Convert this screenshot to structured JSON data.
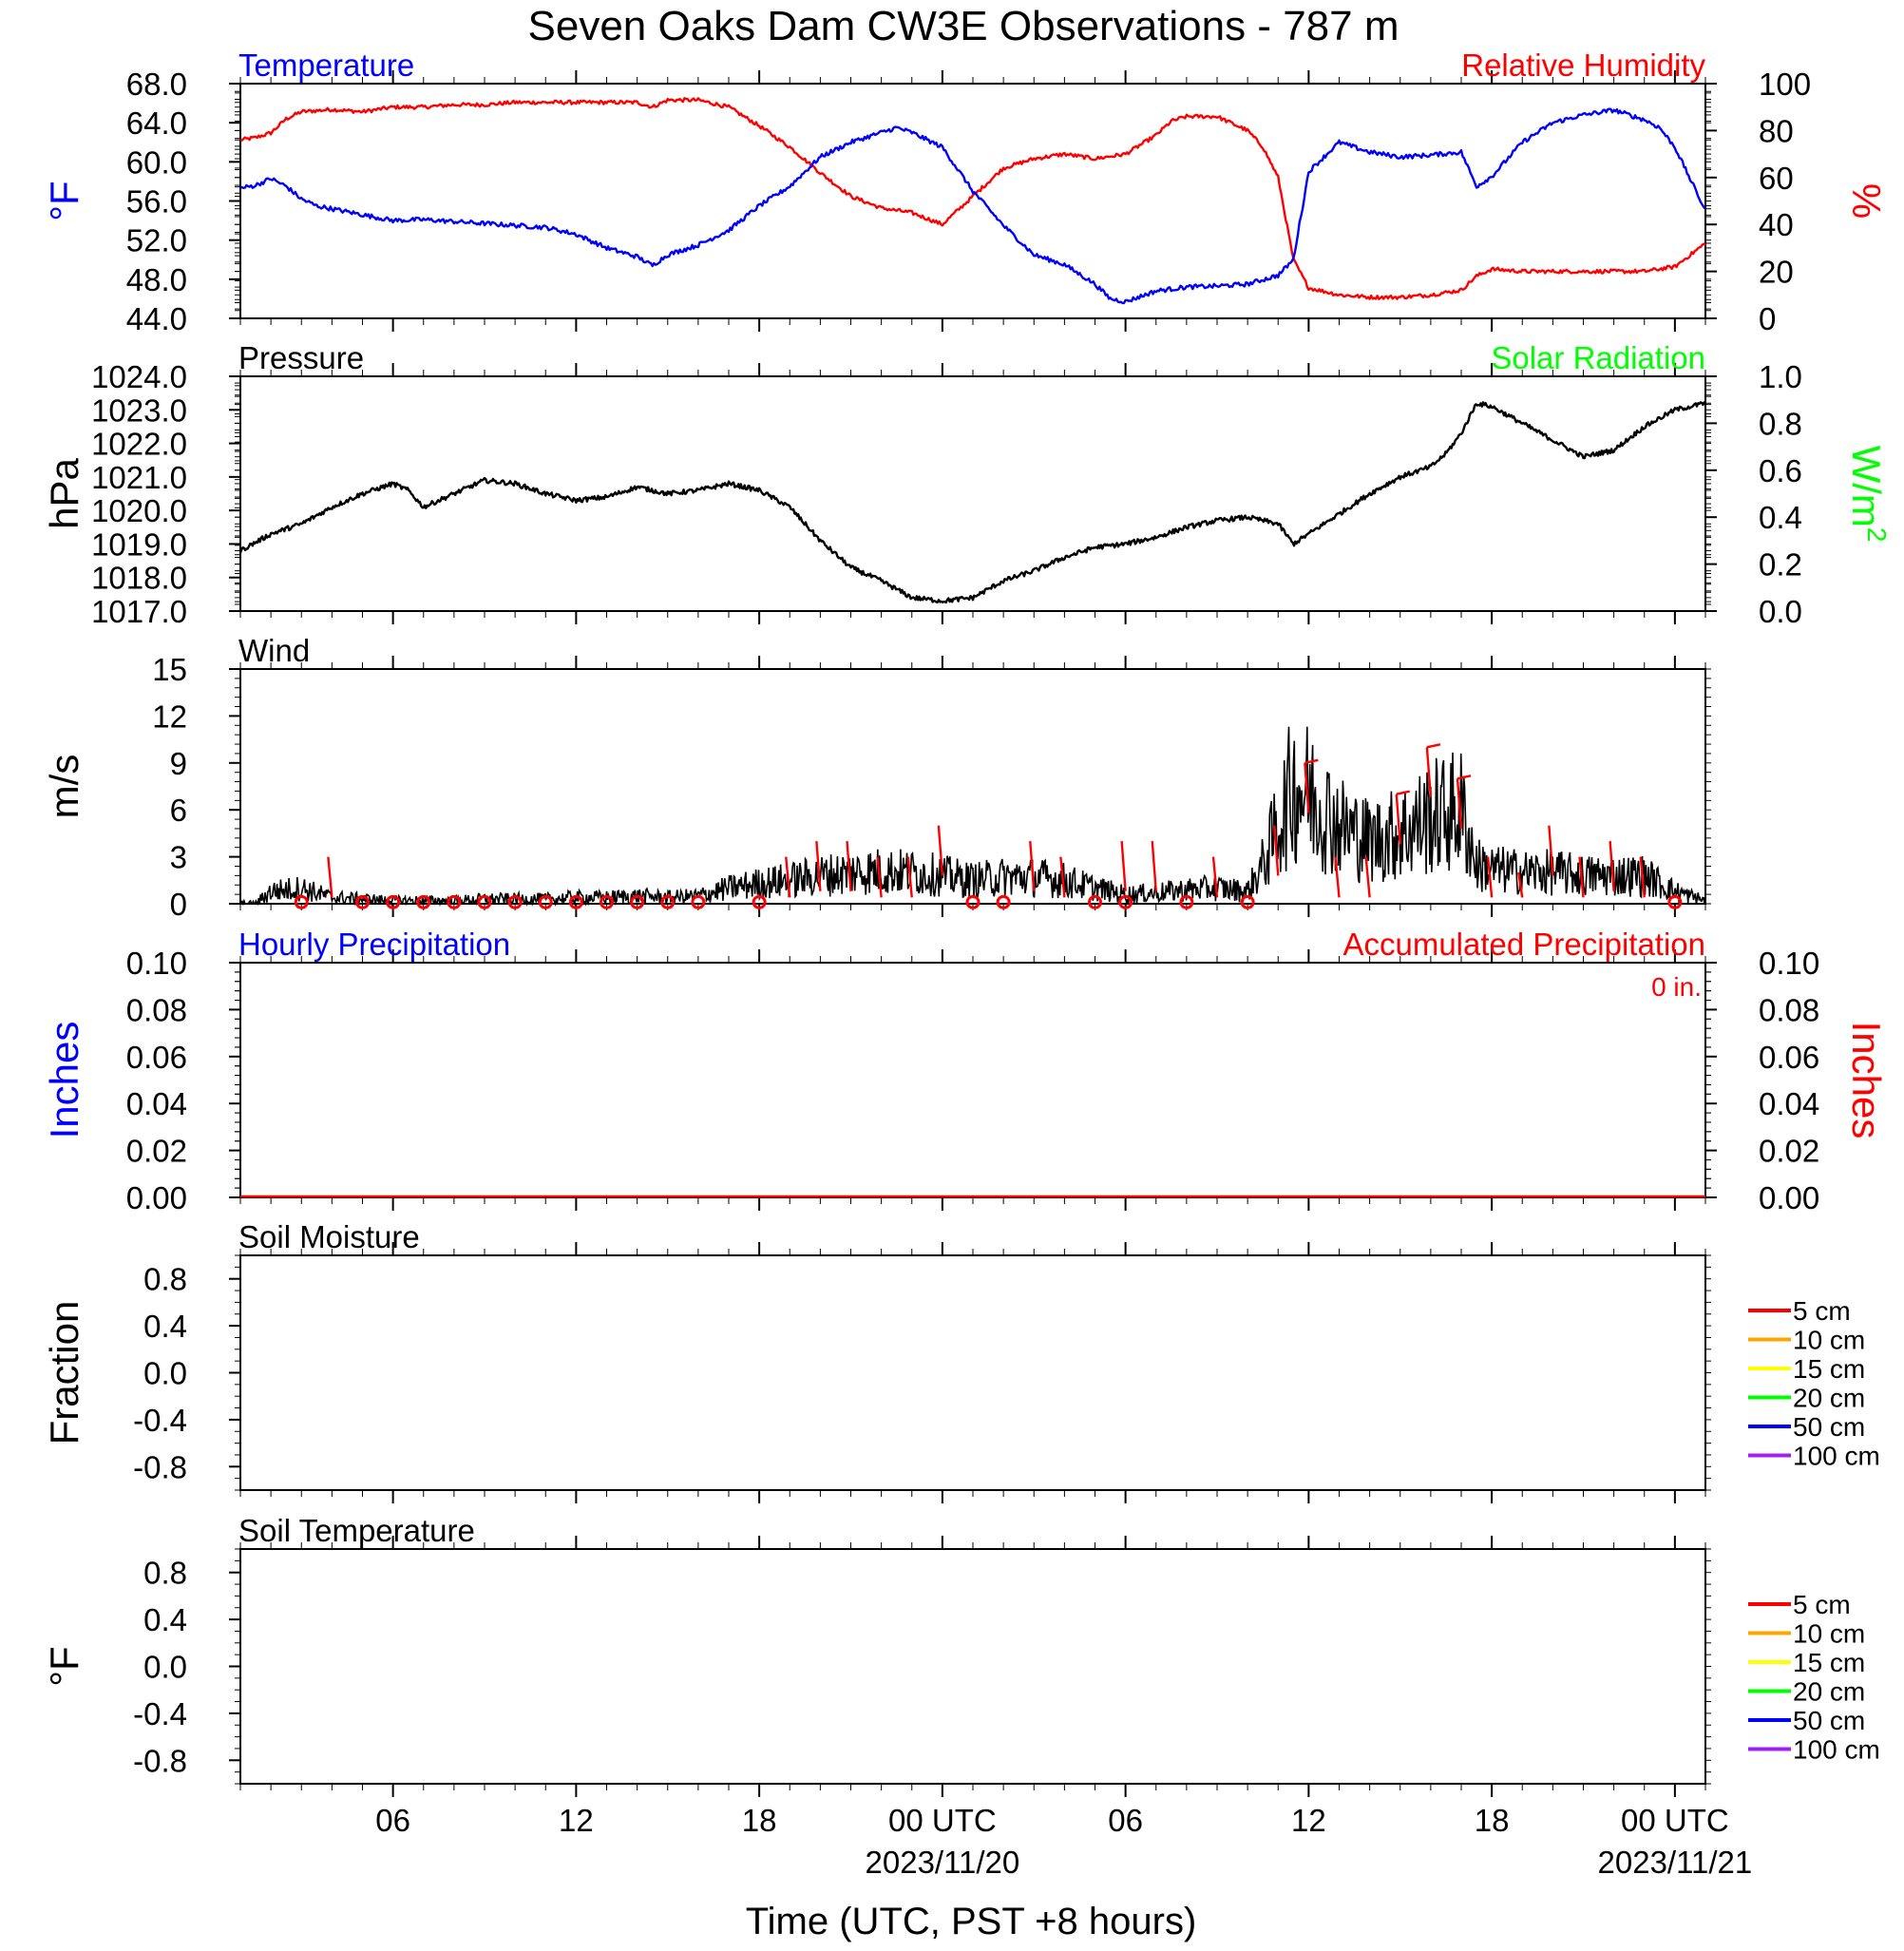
{
  "title": "Seven Oaks Dam CW3E Observations - 787 m",
  "x_axis": {
    "ticks": [
      {
        "hours": 6,
        "label": "06"
      },
      {
        "hours": 12,
        "label": "12"
      },
      {
        "hours": 18,
        "label": "18"
      },
      {
        "hours": 24,
        "label": "00 UTC",
        "sublabel": "2023/11/20"
      },
      {
        "hours": 30,
        "label": "06"
      },
      {
        "hours": 36,
        "label": "12"
      },
      {
        "hours": 42,
        "label": "18"
      },
      {
        "hours": 48,
        "label": "00 UTC",
        "sublabel": "2023/11/21"
      }
    ],
    "range_hours": [
      1,
      49
    ],
    "label": "Time (UTC, PST +8 hours)"
  },
  "colors": {
    "temperature": "#0000ff",
    "humidity": "#ff0000",
    "pressure": "#000000",
    "solar": "#00ff00",
    "wind": "#000000",
    "barb": "#ff0000",
    "hourly_precip": "#0000ff",
    "accum_precip": "#ff0000"
  },
  "legend_colors": [
    "#ff0000",
    "#ffa500",
    "#ffff00",
    "#00ff00",
    "#0000ff",
    "#a020f0"
  ],
  "chart_data": [
    {
      "type": "line",
      "panel": "temperature-humidity",
      "title_left": "Temperature",
      "title_right": "Relative Humidity",
      "ylabel_left": "°F",
      "ylabel_right": "%",
      "ylim_left": [
        44,
        68
      ],
      "yticks_left": [
        "44.0",
        "48.0",
        "52.0",
        "56.0",
        "60.0",
        "64.0",
        "68.0"
      ],
      "ylim_right": [
        0,
        100
      ],
      "yticks_right": [
        "0",
        "20",
        "40",
        "60",
        "80",
        "100"
      ],
      "series": [
        {
          "name": "Temperature",
          "axis": "left",
          "x_hours": [
            1,
            1.5,
            2,
            2.5,
            3,
            3.5,
            4,
            5,
            6,
            7,
            8,
            9,
            10,
            11,
            12,
            13,
            14,
            14.5,
            15,
            16,
            17,
            18,
            19,
            20,
            21,
            22,
            22.5,
            23,
            24,
            25,
            26,
            27,
            28,
            29,
            29.5,
            30,
            31,
            32,
            33,
            34,
            35,
            35.5,
            36,
            37,
            38,
            39,
            40,
            41,
            41.5,
            42,
            43,
            44,
            45,
            46,
            47,
            47.5,
            48,
            49
          ],
          "values": [
            57.3,
            57.6,
            58.3,
            57.5,
            56.2,
            55.5,
            55.2,
            54.6,
            54.0,
            54.1,
            53.9,
            53.7,
            53.5,
            53.3,
            52.6,
            51.2,
            50.3,
            49.4,
            50.5,
            51.5,
            53.0,
            55.5,
            57.5,
            60.5,
            62.0,
            63.0,
            63.5,
            63.0,
            61.5,
            57.0,
            53.5,
            50.5,
            49.5,
            47.5,
            46.0,
            45.7,
            46.8,
            47.2,
            47.3,
            47.5,
            48.4,
            50.0,
            59.0,
            62.0,
            61.0,
            60.5,
            60.7,
            61.0,
            57.5,
            58.5,
            62.0,
            64.0,
            64.8,
            65.3,
            64.3,
            63.5,
            61.5,
            55.0
          ]
        },
        {
          "name": "Relative Humidity",
          "axis": "right",
          "x_hours": [
            1,
            1.5,
            2,
            2.5,
            3,
            4,
            5,
            6,
            7,
            8,
            9,
            10,
            11,
            12,
            13,
            14,
            14.5,
            15,
            16,
            17,
            18,
            19,
            20,
            21,
            22,
            23,
            24,
            25,
            26,
            27,
            28,
            29,
            30,
            31,
            31.5,
            32,
            33,
            34,
            34.5,
            35,
            35.5,
            36,
            37,
            38,
            39,
            40,
            41,
            41.5,
            42,
            43,
            44,
            45,
            46,
            47,
            48,
            48.5,
            49
          ],
          "values": [
            76,
            77,
            79,
            85,
            88,
            89,
            88,
            90,
            90,
            91,
            91,
            92,
            92,
            92,
            92,
            92,
            90,
            93,
            93,
            90,
            82,
            73,
            62,
            52,
            47,
            45,
            40,
            52,
            64,
            68,
            70,
            68,
            70,
            78,
            84,
            86,
            86,
            80,
            73,
            60,
            25,
            13,
            10,
            9,
            9,
            10,
            12,
            18,
            21,
            20,
            20,
            20,
            20,
            20,
            22,
            27,
            32
          ]
        }
      ]
    },
    {
      "type": "line",
      "panel": "pressure-solar",
      "title_left": "Pressure",
      "title_right": "Solar Radiation",
      "ylabel_left": "hPa",
      "ylabel_right_base": "W/m",
      "ylabel_right_sup": "2",
      "ylim_left": [
        1017,
        1024
      ],
      "yticks_left": [
        "1017.0",
        "1018.0",
        "1019.0",
        "1020.0",
        "1021.0",
        "1022.0",
        "1023.0",
        "1024.0"
      ],
      "ylim_right": [
        0,
        1
      ],
      "yticks_right": [
        "0.0",
        "0.2",
        "0.4",
        "0.6",
        "0.8",
        "1.0"
      ],
      "series": [
        {
          "name": "Pressure",
          "axis": "left",
          "x_hours": [
            1,
            2,
            3,
            4,
            5,
            6,
            6.5,
            7,
            8,
            9,
            10,
            11,
            12,
            13,
            14,
            15,
            16,
            17,
            18,
            19,
            20,
            21,
            22,
            23,
            24,
            25,
            26,
            27,
            28,
            29,
            30,
            31,
            32,
            33,
            34,
            35,
            35.5,
            36,
            37,
            38,
            39,
            40,
            40.5,
            41,
            41.5,
            42,
            43,
            44,
            45,
            46,
            47,
            48,
            49
          ],
          "values": [
            1018.8,
            1019.3,
            1019.6,
            1020.1,
            1020.5,
            1020.8,
            1020.6,
            1020.1,
            1020.5,
            1020.9,
            1020.8,
            1020.5,
            1020.3,
            1020.4,
            1020.7,
            1020.5,
            1020.6,
            1020.8,
            1020.6,
            1020.1,
            1019.1,
            1018.3,
            1017.9,
            1017.4,
            1017.3,
            1017.4,
            1017.9,
            1018.2,
            1018.6,
            1018.9,
            1019.0,
            1019.2,
            1019.5,
            1019.7,
            1019.8,
            1019.6,
            1019.0,
            1019.3,
            1019.9,
            1020.5,
            1021.0,
            1021.3,
            1021.7,
            1022.3,
            1023.2,
            1023.1,
            1022.6,
            1022.1,
            1021.6,
            1021.8,
            1022.5,
            1023.0,
            1023.2
          ]
        }
      ]
    },
    {
      "type": "line",
      "panel": "wind",
      "title_left": "Wind",
      "ylabel_left": "m/s",
      "ylim_left": [
        0,
        15
      ],
      "yticks_left": [
        "0",
        "3",
        "6",
        "9",
        "12",
        "15"
      ],
      "series": [
        {
          "name": "Wind",
          "axis": "left",
          "x_hours": [
            1,
            1.5,
            2,
            3,
            4,
            5,
            6,
            7,
            8,
            9,
            10,
            11,
            12,
            13,
            14,
            15,
            16,
            17,
            18,
            19,
            20,
            21,
            22,
            23,
            24,
            25,
            26,
            27,
            28,
            29,
            30,
            31,
            32,
            33,
            34,
            34.5,
            35,
            35.5,
            36,
            37,
            38,
            39,
            40,
            41,
            41.5,
            42,
            43,
            44,
            45,
            46,
            47,
            48,
            49
          ],
          "values": [
            0,
            0,
            0.8,
            1.0,
            0.4,
            0.3,
            0.2,
            0.2,
            0.2,
            0.3,
            0.3,
            0.3,
            0.4,
            0.4,
            0.5,
            0.4,
            0.5,
            1.0,
            1.3,
            1.5,
            1.8,
            2.0,
            2.1,
            2.0,
            1.8,
            1.5,
            1.7,
            1.7,
            1.5,
            1.0,
            0.6,
            0.7,
            0.9,
            1.0,
            0.8,
            2.5,
            5.0,
            7.5,
            7.0,
            5.0,
            4.0,
            4.5,
            5.5,
            6.0,
            2.5,
            2.2,
            2.0,
            2.0,
            1.8,
            1.8,
            1.8,
            0.8,
            0.2
          ]
        }
      ],
      "barbs": {
        "x_hours": [
          4,
          19,
          20,
          21,
          22,
          23,
          24,
          27,
          28,
          30,
          31,
          33,
          35,
          36,
          37,
          38,
          39,
          40,
          41,
          42,
          43,
          44,
          45,
          46,
          47
        ],
        "speeds": [
          3,
          3,
          4,
          4,
          3,
          3,
          5,
          4,
          3,
          4,
          4,
          3,
          5,
          9,
          3,
          3,
          7,
          10,
          8,
          3,
          2,
          5,
          3,
          4,
          3
        ]
      },
      "calm_x_hours": [
        3,
        5,
        6,
        7,
        8,
        9,
        10,
        11,
        12,
        13,
        14,
        15,
        16,
        18,
        25,
        26,
        29,
        30,
        32,
        34,
        48
      ]
    },
    {
      "type": "line",
      "panel": "precipitation",
      "title_left": "Hourly Precipitation",
      "title_right": "Accumulated Precipitation",
      "annotation": "0 in.",
      "ylabel_left": "Inches",
      "ylabel_right": "Inches",
      "ylim_left": [
        0,
        0.1
      ],
      "yticks_left": [
        "0.00",
        "0.02",
        "0.04",
        "0.06",
        "0.08",
        "0.10"
      ],
      "ylim_right": [
        0,
        0.1
      ],
      "yticks_right": [
        "0.00",
        "0.02",
        "0.04",
        "0.06",
        "0.08",
        "0.10"
      ],
      "series": [
        {
          "name": "Accumulated Precipitation",
          "axis": "right",
          "x_hours": [
            1,
            49
          ],
          "values": [
            0,
            0
          ]
        }
      ]
    },
    {
      "type": "line",
      "panel": "soil-moisture",
      "title_left": "Soil Moisture",
      "ylabel_left": "Fraction",
      "ylim_left": [
        -1,
        1
      ],
      "yticks_left": [
        "-0.8",
        "-0.4",
        "0.0",
        "0.4",
        "0.8"
      ],
      "legend": [
        "5 cm",
        "10 cm",
        "15 cm",
        "20 cm",
        "50 cm",
        "100 cm"
      ],
      "series": []
    },
    {
      "type": "line",
      "panel": "soil-temperature",
      "title_left": "Soil Temperature",
      "ylabel_left": "°F",
      "ylim_left": [
        -1,
        1
      ],
      "yticks_left": [
        "-0.8",
        "-0.4",
        "0.0",
        "0.4",
        "0.8"
      ],
      "legend": [
        "5 cm",
        "10 cm",
        "15 cm",
        "20 cm",
        "50 cm",
        "100 cm"
      ],
      "series": []
    }
  ]
}
